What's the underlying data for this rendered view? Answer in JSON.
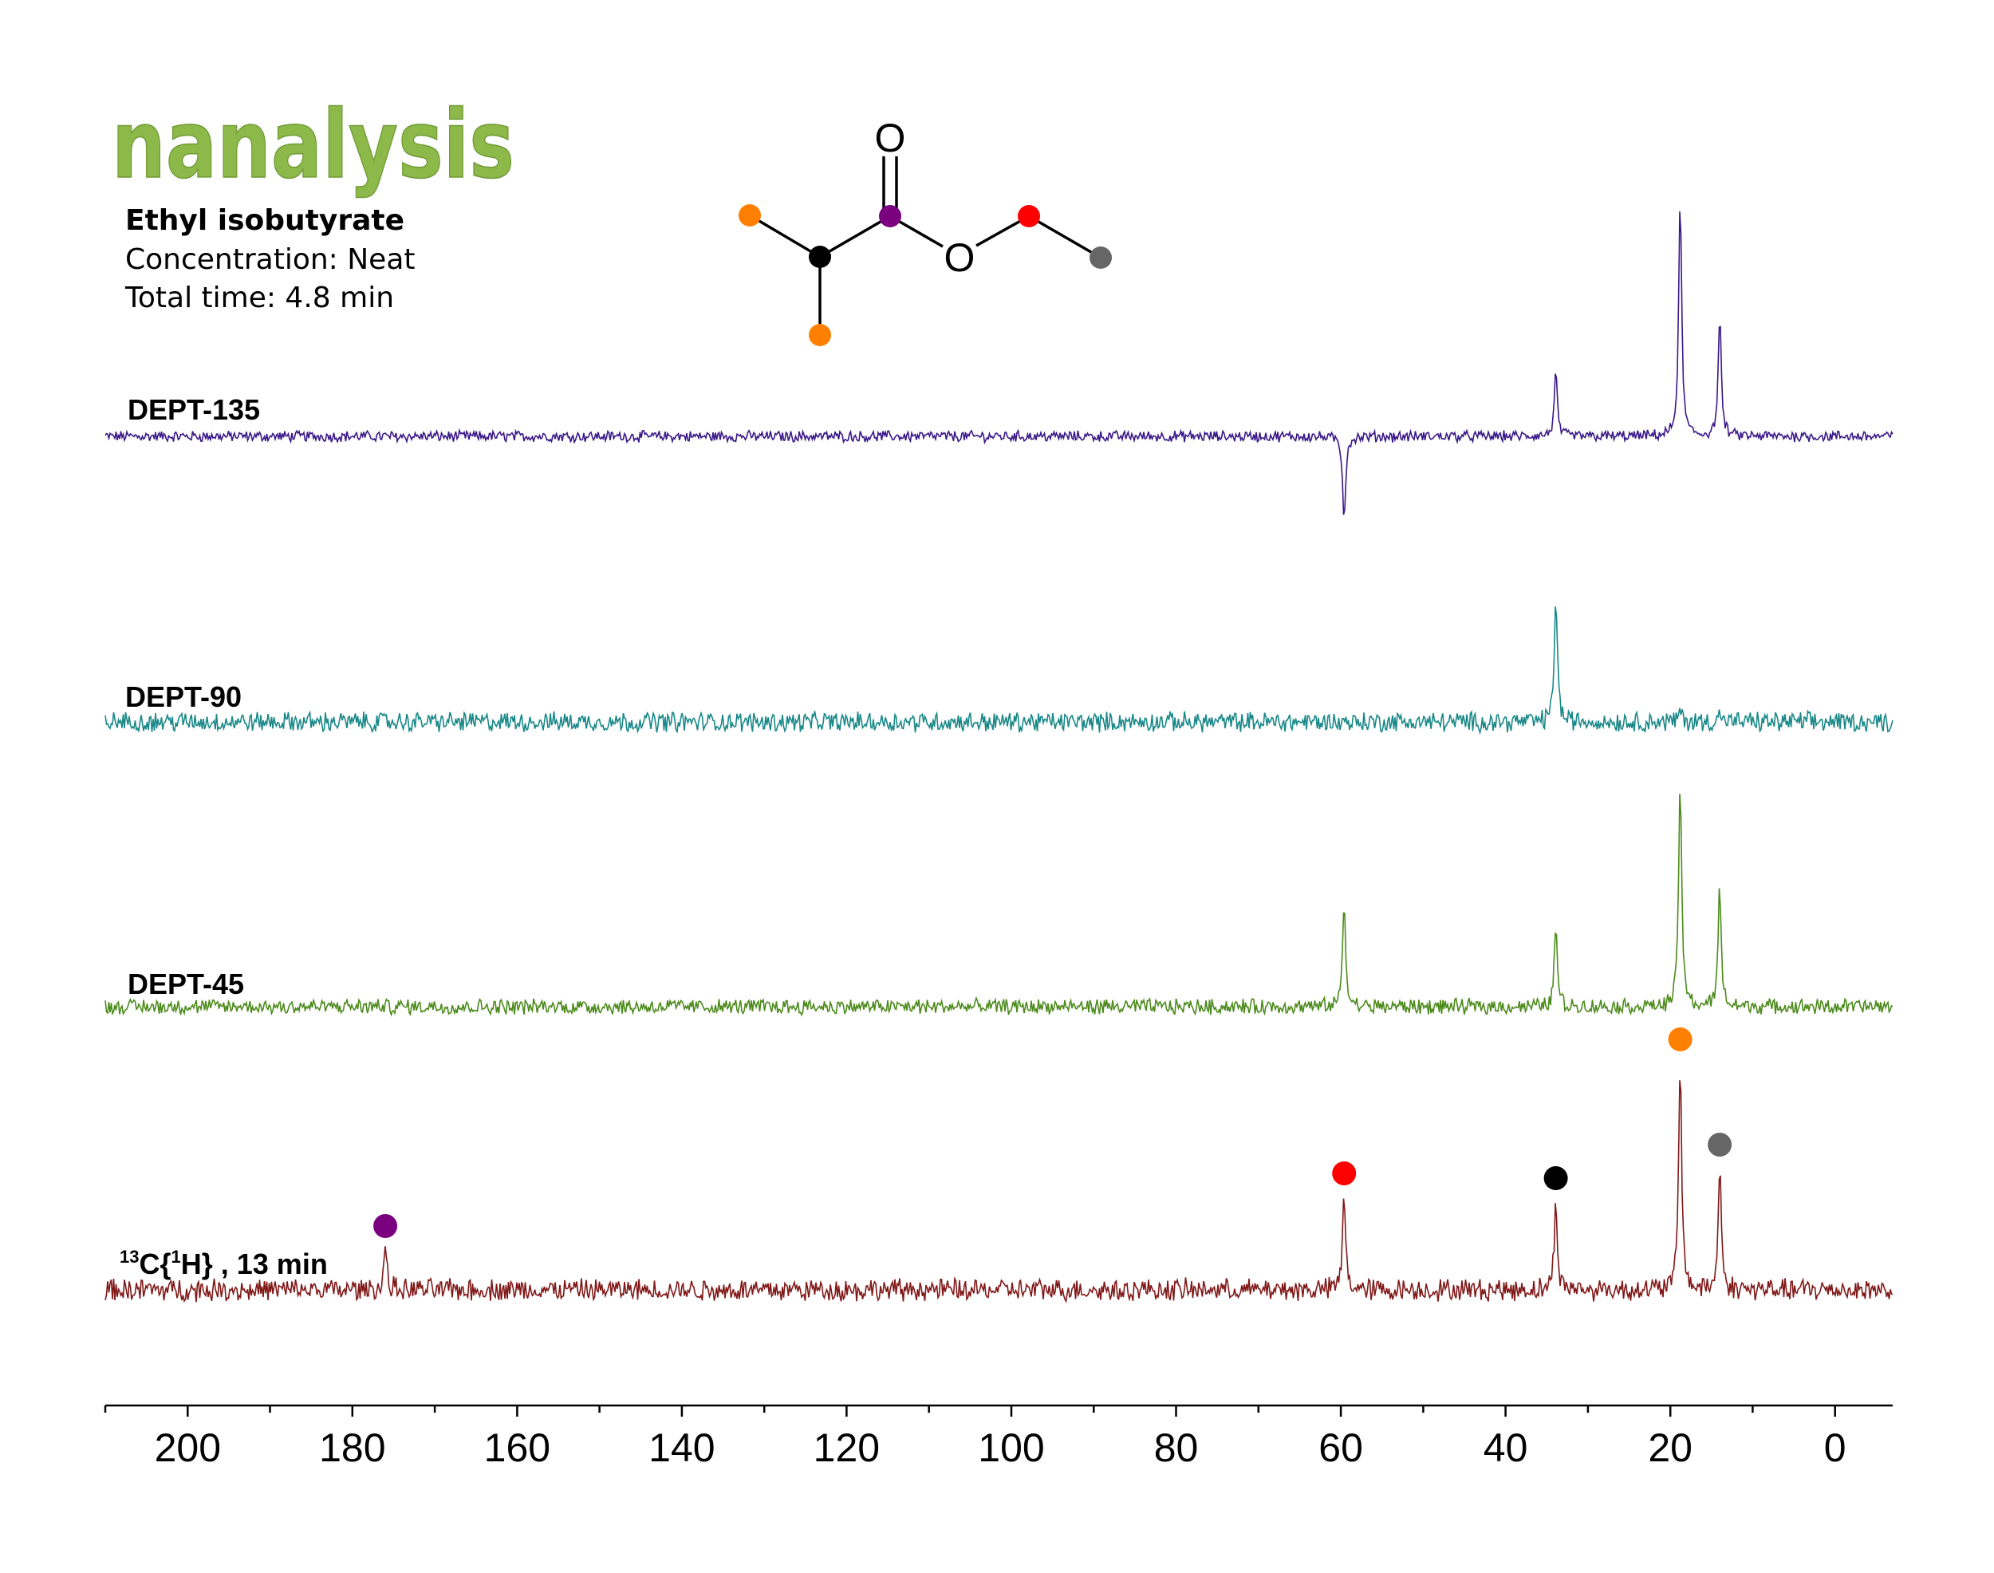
{
  "logo": {
    "text": "nanalysis",
    "color": "#8db84a"
  },
  "sample": {
    "title": "Ethyl isobutyrate",
    "concentration": "Concentration: Neat",
    "total_time": "Total time: 4.8 min"
  },
  "molecule": {
    "oxygen_symbol": "O",
    "atom_colors": {
      "methyl_isopropyl": "#ff8000",
      "methine": "#000000",
      "carbonyl": "#7a0080",
      "methylene": "#ff0000",
      "methyl_ethyl": "#666666"
    }
  },
  "chart_data": {
    "type": "line",
    "xlabel": "",
    "ylabel": "",
    "xlim": [
      210,
      -7
    ],
    "x_reversed": true,
    "x_ticks": [
      200,
      180,
      160,
      140,
      120,
      100,
      80,
      60,
      40,
      20,
      0
    ],
    "x_minor_step": 10,
    "grid": false,
    "series": [
      {
        "name": "DEPT-135",
        "label_parts": {
          "main": "DEPT-135"
        },
        "color": "#3a1888",
        "noise": 0.05,
        "peaks": [
          {
            "ppm": 59.6,
            "intensity": -0.85
          },
          {
            "ppm": 33.9,
            "intensity": 0.65
          },
          {
            "ppm": 18.8,
            "intensity": 2.45
          },
          {
            "ppm": 14.0,
            "intensity": 1.25
          }
        ]
      },
      {
        "name": "DEPT-90",
        "label_parts": {
          "main": "DEPT-90"
        },
        "color": "#1a8888",
        "noise": 0.09,
        "peaks": [
          {
            "ppm": 33.9,
            "intensity": 1.35
          },
          {
            "ppm": 18.8,
            "intensity": 0.12
          },
          {
            "ppm": 14.0,
            "intensity": 0.1
          }
        ]
      },
      {
        "name": "DEPT-45",
        "label_parts": {
          "main": "DEPT-45"
        },
        "color": "#4c8a1c",
        "noise": 0.07,
        "peaks": [
          {
            "ppm": 59.6,
            "intensity": 1.1
          },
          {
            "ppm": 33.9,
            "intensity": 0.85
          },
          {
            "ppm": 18.8,
            "intensity": 2.4
          },
          {
            "ppm": 14.0,
            "intensity": 1.25
          }
        ]
      },
      {
        "name": "13C{1H}, 13 min",
        "label_parts": {
          "sup1": "13",
          "c": "C{",
          "sup2": "1",
          "rest": "H} , 13 min"
        },
        "color": "#801818",
        "noise": 0.1,
        "peaks": [
          {
            "ppm": 176.0,
            "intensity": 0.45
          },
          {
            "ppm": 59.6,
            "intensity": 1.0
          },
          {
            "ppm": 33.9,
            "intensity": 0.95
          },
          {
            "ppm": 18.8,
            "intensity": 2.4
          },
          {
            "ppm": 14.0,
            "intensity": 1.3
          }
        ],
        "markers": [
          {
            "ppm": 176.0,
            "color": "#7a0080"
          },
          {
            "ppm": 59.6,
            "color": "#ff0000"
          },
          {
            "ppm": 33.9,
            "color": "#000000"
          },
          {
            "ppm": 18.8,
            "color": "#ff8000"
          },
          {
            "ppm": 14.0,
            "color": "#666666"
          }
        ]
      }
    ]
  }
}
